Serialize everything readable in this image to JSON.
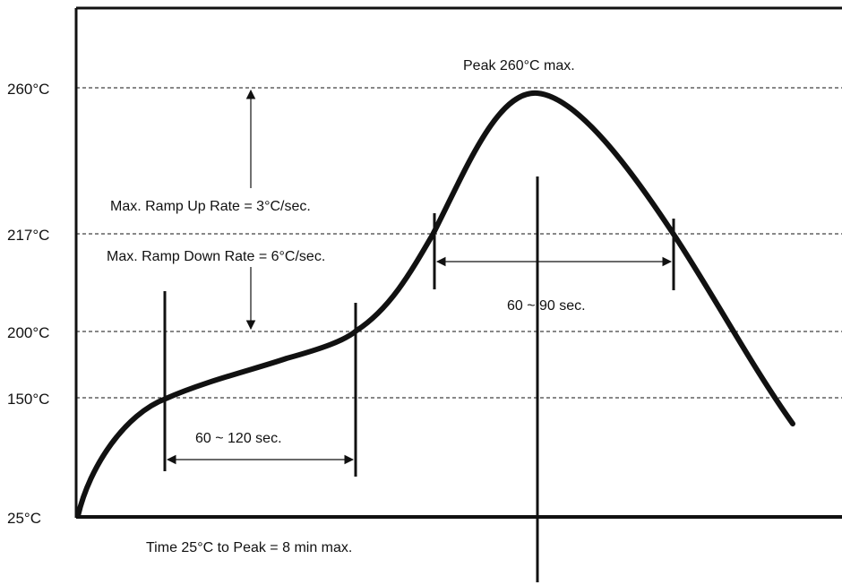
{
  "diagram": {
    "y_axis_labels": {
      "t260": "260°C",
      "t217": "217°C",
      "t200": "200°C",
      "t150": "150°C",
      "t25": "25°C"
    },
    "annotations": {
      "peak": "Peak 260°C max.",
      "ramp_up": "Max. Ramp Up Rate = 3°C/sec.",
      "ramp_down": "Max. Ramp Down Rate = 6°C/sec.",
      "preheat_duration": "60 ~ 120 sec.",
      "reflow_duration": "60 ~ 90 sec.",
      "time_to_peak": "Time 25°C to Peak = 8 min max."
    }
  }
}
